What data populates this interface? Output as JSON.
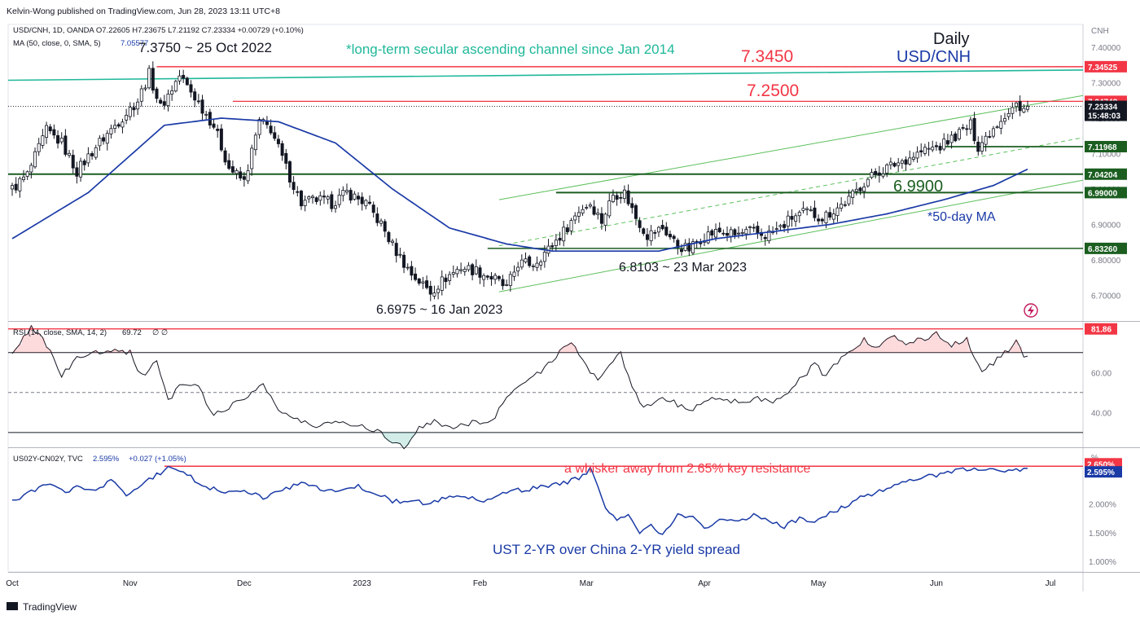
{
  "header": {
    "published": "Kelvin-Wong published on TradingView.com, Jun 28, 2023 13:11 UTC+8",
    "currency": "CNH"
  },
  "main_legend": {
    "symbol": "USD/CNH, 1D, OANDA",
    "ohlc": "O7.22605 H7.23675 L7.21192 C7.23334 +0.00729 (+0.10%)",
    "ma_label": "MA (50, close, 0, SMA, 5)",
    "ma_value": "7.05577"
  },
  "rsi_legend": {
    "label": "RSI (14, close, SMA, 14, 2)",
    "value": "69.72",
    "extra": "∅ ∅"
  },
  "spread_legend": {
    "label": "US02Y-CN02Y, TVC",
    "value": "2.595%",
    "change": "+0.027 (+1.05%)",
    "unit": "%"
  },
  "annotations": {
    "title_daily": "Daily",
    "title_pair": "USD/CNH",
    "channel_note": "*long-term secular ascending channel since Jan 2014",
    "high_note": "7.3750 ~ 25 Oct 2022",
    "level_7345": "7.3450",
    "level_7250": "7.2500",
    "level_6990": "6.9900",
    "ma_note": "*50-day MA",
    "low_mar": "6.8103 ~ 23 Mar 2023",
    "low_jan": "6.6975 ~ 16 Jan 2023",
    "spread_note": "a whisker away from 2.65% key resistance",
    "spread_title": "UST 2-YR over China 2-YR yield spread"
  },
  "price_axis": {
    "ticks": [
      "7.40000",
      "7.30000",
      "7.20000",
      "7.10000",
      "7.00000",
      "6.90000",
      "6.80000",
      "6.70000"
    ],
    "tick_values": [
      7.4,
      7.3,
      7.2,
      7.1,
      7.0,
      6.9,
      6.8,
      6.7
    ],
    "badges": [
      {
        "label": "7.34525",
        "color": "#f23645",
        "value": 7.34525
      },
      {
        "label": "7.24748",
        "color": "#f23645",
        "value": 7.24748
      },
      {
        "label": "7.23334",
        "color": "#131722",
        "value": 7.23334
      },
      {
        "label": "15:48:03",
        "color": "#131722",
        "value": 7.208
      },
      {
        "label": "7.11968",
        "color": "#1b5e20",
        "value": 7.11968
      },
      {
        "label": "7.04204",
        "color": "#1b5e20",
        "value": 7.04204
      },
      {
        "label": "6.99000",
        "color": "#1b5e20",
        "value": 6.99
      },
      {
        "label": "6.83260",
        "color": "#1b5e20",
        "value": 6.8326
      }
    ]
  },
  "rsi_axis": {
    "ticks": [
      "60.00",
      "40.00"
    ],
    "tick_values": [
      60,
      40
    ],
    "badge": {
      "label": "81.86",
      "color": "#f23645",
      "value": 81.86
    }
  },
  "spread_axis": {
    "ticks": [
      "2.000%",
      "1.500%",
      "1.000%"
    ],
    "tick_values": [
      2.0,
      1.5,
      1.0
    ],
    "badges": [
      {
        "label": "2.650%",
        "color": "#f23645",
        "value": 2.65
      },
      {
        "label": "2.595%",
        "color": "#1a3aa6",
        "value": 2.595
      }
    ]
  },
  "time_axis": {
    "labels": [
      "Oct",
      "Nov",
      "Dec",
      "2023",
      "Feb",
      "Mar",
      "Apr",
      "May",
      "Jun",
      "Jul"
    ],
    "positions": [
      0,
      31,
      61,
      92,
      123,
      151,
      182,
      212,
      243,
      273
    ]
  },
  "colors": {
    "red_level": "#f23645",
    "green_level": "#1b5e20",
    "channel_teal": "#1fb89a",
    "ma_blue": "#1a3aa6",
    "candle": "#131722",
    "rsi_line": "#131722",
    "spread_line": "#1a3aa6"
  },
  "footer": {
    "brand": "TradingView"
  },
  "chart_data": [
    {
      "type": "candlestick",
      "title": "USD/CNH, 1D, OANDA",
      "ylim": [
        6.63,
        7.43
      ],
      "x_start": "2022-09-19",
      "x_end": "2023-06-28",
      "series": [
        {
          "name": "USD/CNH",
          "close_anchors": [
            [
              0,
              7.0
            ],
            [
              4,
              7.04
            ],
            [
              9,
              7.165
            ],
            [
              13,
              7.13
            ],
            [
              17,
              7.05
            ],
            [
              22,
              7.12
            ],
            [
              27,
              7.18
            ],
            [
              33,
              7.25
            ],
            [
              36,
              7.325
            ],
            [
              39,
              7.23
            ],
            [
              44,
              7.32
            ],
            [
              48,
              7.26
            ],
            [
              53,
              7.18
            ],
            [
              57,
              7.06
            ],
            [
              61,
              7.02
            ],
            [
              65,
              7.19
            ],
            [
              68,
              7.17
            ],
            [
              72,
              7.06
            ],
            [
              76,
              6.96
            ],
            [
              80,
              6.97
            ],
            [
              84,
              6.96
            ],
            [
              88,
              6.99
            ],
            [
              93,
              6.96
            ],
            [
              97,
              6.9
            ],
            [
              100,
              6.84
            ],
            [
              105,
              6.76
            ],
            [
              110,
              6.71
            ],
            [
              114,
              6.75
            ],
            [
              118,
              6.78
            ],
            [
              122,
              6.77
            ],
            [
              127,
              6.745
            ],
            [
              130,
              6.72
            ],
            [
              133,
              6.79
            ],
            [
              137,
              6.79
            ],
            [
              141,
              6.83
            ],
            [
              145,
              6.88
            ],
            [
              149,
              6.94
            ],
            [
              152,
              6.96
            ],
            [
              155,
              6.91
            ],
            [
              158,
              6.985
            ],
            [
              161,
              6.99
            ],
            [
              164,
              6.92
            ],
            [
              167,
              6.87
            ],
            [
              171,
              6.89
            ],
            [
              175,
              6.84
            ],
            [
              178,
              6.83
            ],
            [
              182,
              6.87
            ],
            [
              186,
              6.88
            ],
            [
              190,
              6.87
            ],
            [
              194,
              6.88
            ],
            [
              198,
              6.87
            ],
            [
              202,
              6.89
            ],
            [
              205,
              6.92
            ],
            [
              209,
              6.935
            ],
            [
              213,
              6.92
            ],
            [
              216,
              6.94
            ],
            [
              220,
              6.97
            ],
            [
              224,
              7.02
            ],
            [
              228,
              7.05
            ],
            [
              232,
              7.07
            ],
            [
              236,
              7.09
            ],
            [
              240,
              7.11
            ],
            [
              244,
              7.12
            ],
            [
              248,
              7.15
            ],
            [
              252,
              7.18
            ],
            [
              254,
              7.12
            ],
            [
              257,
              7.16
            ],
            [
              260,
              7.2
            ],
            [
              264,
              7.24
            ],
            [
              265,
              7.215
            ],
            [
              267,
              7.233
            ]
          ]
        }
      ],
      "ma50_anchors": [
        [
          0,
          6.86
        ],
        [
          20,
          6.99
        ],
        [
          40,
          7.18
        ],
        [
          55,
          7.2
        ],
        [
          70,
          7.19
        ],
        [
          85,
          7.13
        ],
        [
          100,
          7.0
        ],
        [
          115,
          6.89
        ],
        [
          130,
          6.845
        ],
        [
          142,
          6.825
        ],
        [
          155,
          6.825
        ],
        [
          170,
          6.825
        ],
        [
          185,
          6.86
        ],
        [
          200,
          6.88
        ],
        [
          215,
          6.9
        ],
        [
          230,
          6.93
        ],
        [
          245,
          6.97
        ],
        [
          258,
          7.01
        ],
        [
          267,
          7.056
        ]
      ],
      "lines": [
        {
          "name": "7.34525",
          "value": 7.34525
        },
        {
          "name": "7.2500",
          "value": 7.2475
        },
        {
          "name": "7.11968",
          "value": 7.11968
        },
        {
          "name": "7.04204",
          "value": 7.04204
        },
        {
          "name": "6.99000",
          "value": 6.99
        },
        {
          "name": "6.83260",
          "value": 6.8326
        }
      ]
    },
    {
      "type": "line",
      "title": "RSI (14, close, SMA, 14, 2)",
      "ylim": [
        23,
        85
      ],
      "series": [
        {
          "name": "RSI",
          "anchors": [
            [
              0,
              68
            ],
            [
              5,
              83
            ],
            [
              8,
              78
            ],
            [
              13,
              58
            ],
            [
              17,
              67
            ],
            [
              22,
              70
            ],
            [
              27,
              72
            ],
            [
              31,
              70
            ],
            [
              34,
              58
            ],
            [
              38,
              66
            ],
            [
              41,
              46
            ],
            [
              45,
              55
            ],
            [
              49,
              52
            ],
            [
              53,
              39
            ],
            [
              58,
              44
            ],
            [
              62,
              48
            ],
            [
              66,
              55
            ],
            [
              70,
              41
            ],
            [
              75,
              36
            ],
            [
              80,
              33
            ],
            [
              86,
              36
            ],
            [
              92,
              33
            ],
            [
              96,
              31
            ],
            [
              100,
              26
            ],
            [
              103,
              22
            ],
            [
              107,
              33
            ],
            [
              111,
              35
            ],
            [
              116,
              33
            ],
            [
              121,
              35
            ],
            [
              126,
              35
            ],
            [
              130,
              49
            ],
            [
              135,
              55
            ],
            [
              139,
              61
            ],
            [
              143,
              68
            ],
            [
              147,
              75
            ],
            [
              150,
              67
            ],
            [
              154,
              55
            ],
            [
              157,
              65
            ],
            [
              160,
              69
            ],
            [
              163,
              52
            ],
            [
              166,
              42
            ],
            [
              170,
              48
            ],
            [
              175,
              44
            ],
            [
              178,
              40
            ],
            [
              182,
              46
            ],
            [
              186,
              48
            ],
            [
              191,
              45
            ],
            [
              196,
              47
            ],
            [
              200,
              46
            ],
            [
              204,
              50
            ],
            [
              207,
              56
            ],
            [
              211,
              64
            ],
            [
              214,
              58
            ],
            [
              217,
              65
            ],
            [
              220,
              69
            ],
            [
              224,
              77
            ],
            [
              227,
              72
            ],
            [
              231,
              78
            ],
            [
              235,
              75
            ],
            [
              239,
              77
            ],
            [
              243,
              79
            ],
            [
              247,
              74
            ],
            [
              251,
              77
            ],
            [
              253,
              67
            ],
            [
              255,
              60
            ],
            [
              258,
              65
            ],
            [
              261,
              70
            ],
            [
              264,
              75
            ],
            [
              266,
              69
            ]
          ]
        }
      ],
      "levels": [
        81.86,
        70,
        50,
        30
      ]
    },
    {
      "type": "line",
      "title": "US02Y-CN02Y, TVC",
      "ylim": [
        0.82,
        2.95
      ],
      "series": [
        {
          "name": "US02Y-CN02Y",
          "anchors": [
            [
              0,
              2.05
            ],
            [
              5,
              2.2
            ],
            [
              10,
              2.35
            ],
            [
              14,
              2.2
            ],
            [
              18,
              2.3
            ],
            [
              22,
              2.2
            ],
            [
              26,
              2.4
            ],
            [
              30,
              2.15
            ],
            [
              34,
              2.35
            ],
            [
              38,
              2.5
            ],
            [
              42,
              2.65
            ],
            [
              46,
              2.5
            ],
            [
              51,
              2.3
            ],
            [
              56,
              2.2
            ],
            [
              61,
              2.25
            ],
            [
              66,
              2.1
            ],
            [
              71,
              2.25
            ],
            [
              76,
              2.35
            ],
            [
              81,
              2.25
            ],
            [
              86,
              2.2
            ],
            [
              91,
              2.3
            ],
            [
              95,
              2.2
            ],
            [
              100,
              2.05
            ],
            [
              105,
              2.05
            ],
            [
              110,
              2.0
            ],
            [
              115,
              2.15
            ],
            [
              120,
              2.1
            ],
            [
              125,
              2.05
            ],
            [
              130,
              2.2
            ],
            [
              135,
              2.25
            ],
            [
              140,
              2.3
            ],
            [
              145,
              2.35
            ],
            [
              149,
              2.45
            ],
            [
              152,
              2.6
            ],
            [
              154,
              2.3
            ],
            [
              156,
              1.9
            ],
            [
              159,
              1.7
            ],
            [
              162,
              1.85
            ],
            [
              165,
              1.5
            ],
            [
              168,
              1.65
            ],
            [
              171,
              1.45
            ],
            [
              175,
              1.8
            ],
            [
              179,
              1.75
            ],
            [
              183,
              1.55
            ],
            [
              187,
              1.75
            ],
            [
              191,
              1.7
            ],
            [
              195,
              1.8
            ],
            [
              199,
              1.7
            ],
            [
              203,
              1.6
            ],
            [
              207,
              1.75
            ],
            [
              211,
              1.7
            ],
            [
              215,
              1.85
            ],
            [
              219,
              1.95
            ],
            [
              223,
              2.1
            ],
            [
              227,
              2.2
            ],
            [
              231,
              2.3
            ],
            [
              235,
              2.4
            ],
            [
              239,
              2.45
            ],
            [
              243,
              2.5
            ],
            [
              247,
              2.55
            ],
            [
              251,
              2.6
            ],
            [
              255,
              2.58
            ],
            [
              259,
              2.57
            ],
            [
              263,
              2.56
            ],
            [
              266,
              2.595
            ]
          ]
        }
      ],
      "levels": [
        2.65
      ]
    }
  ]
}
